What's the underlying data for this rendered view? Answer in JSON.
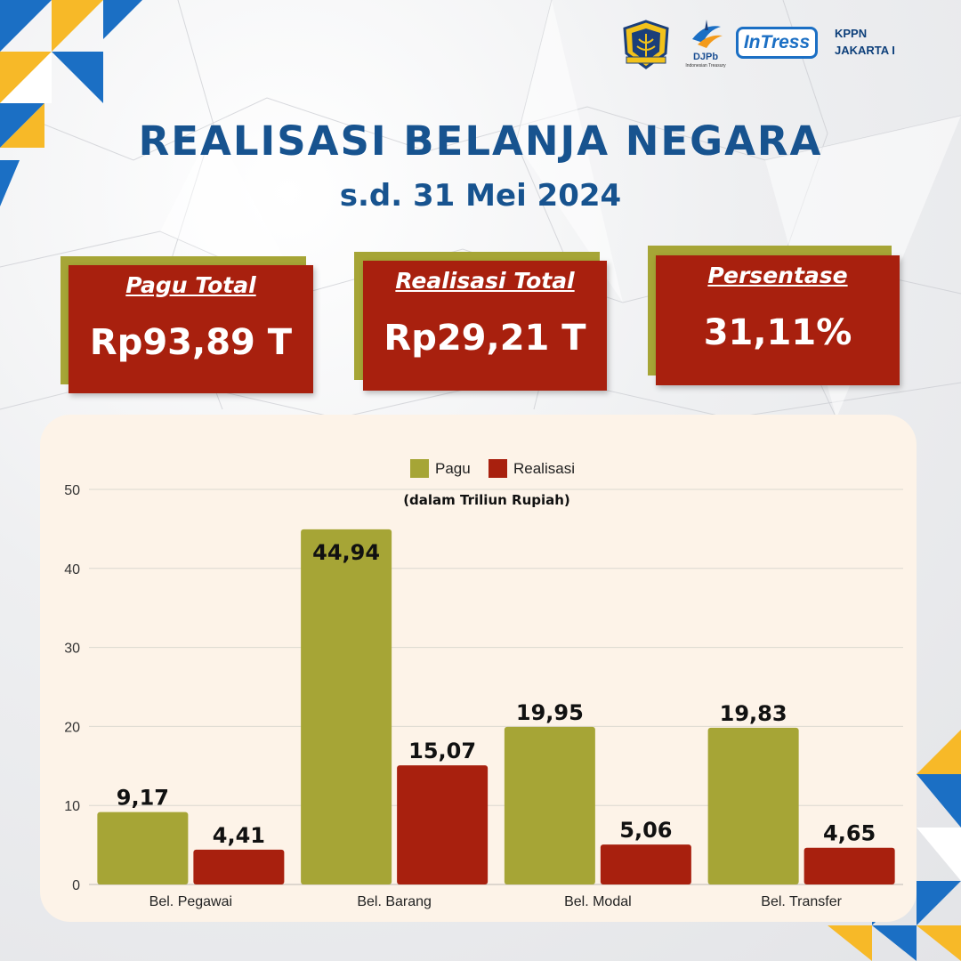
{
  "header": {
    "kppn_line1": "KPPN",
    "kppn_line2": "JAKARTA I",
    "logo_emblem": "kemenkeu-emblem-icon",
    "logo_djpb": "djpb-logo-icon",
    "djpb_text": "DJPb",
    "djpb_sub": "Indonesian Treasury",
    "intress_text": "InTress"
  },
  "title": "REALISASI BELANJA NEGARA",
  "subtitle": "s.d. 31 Mei 2024",
  "cards": [
    {
      "label": "Pagu Total",
      "value": "Rp93,89 T"
    },
    {
      "label": "Realisasi Total",
      "value": "Rp29,21 T"
    },
    {
      "label": "Persentase",
      "value": "31,11%"
    }
  ],
  "colors": {
    "pagu": "#a6a536",
    "realisasi": "#a8200e",
    "title": "#17538f",
    "panel": "#fdf3e8"
  },
  "chart_data": {
    "type": "bar",
    "categories": [
      "Bel. Pegawai",
      "Bel. Barang",
      "Bel. Modal",
      "Bel. Transfer"
    ],
    "series": [
      {
        "name": "Pagu",
        "values": [
          9.17,
          44.94,
          19.95,
          19.83
        ],
        "labels": [
          "9,17",
          "44,94",
          "19,95",
          "19,83"
        ],
        "color": "#a6a536"
      },
      {
        "name": "Realisasi",
        "values": [
          4.41,
          15.07,
          5.06,
          4.65
        ],
        "labels": [
          "4,41",
          "15,07",
          "5,06",
          "4,65"
        ],
        "color": "#a8200e"
      }
    ],
    "unit_label": "(dalam Triliun Rupiah)",
    "yticks": [
      "0",
      "10",
      "20",
      "30",
      "40",
      "50"
    ],
    "ylim": [
      0,
      50
    ],
    "grid": true,
    "legend": "top-center"
  }
}
